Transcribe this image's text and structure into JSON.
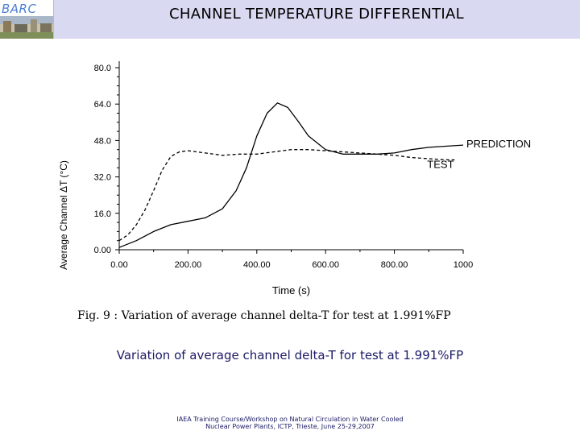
{
  "header": {
    "logo_text": "BARC",
    "title": "CHANNEL TEMPERATURE DIFFERENTIAL"
  },
  "chart_data": {
    "type": "line",
    "xlabel": "Time (s)",
    "ylabel": "Average Channel ΔT (°C)",
    "xlim": [
      0,
      1000
    ],
    "ylim": [
      0,
      80
    ],
    "xticks": [
      "0.00",
      "200.00",
      "400.00",
      "600.00",
      "800.00",
      "1000"
    ],
    "yticks": [
      "0.00",
      "16.0",
      "32.0",
      "48.0",
      "64.0",
      "80.0"
    ],
    "grid": false,
    "series": [
      {
        "name": "PREDICTION",
        "style": "dashed",
        "x": [
          0,
          25,
          50,
          75,
          100,
          125,
          150,
          175,
          200,
          250,
          300,
          350,
          400,
          450,
          500,
          550,
          600,
          650,
          700,
          750,
          800,
          850,
          900,
          950,
          975
        ],
        "y": [
          4,
          6.5,
          11,
          17.5,
          26,
          35,
          41,
          43,
          43.5,
          42.5,
          41.5,
          42,
          42,
          43,
          44,
          44,
          43.5,
          43,
          42.5,
          42,
          41.5,
          40.5,
          40,
          39.5,
          39.5
        ]
      },
      {
        "name": "TEST",
        "style": "solid",
        "x": [
          0,
          50,
          100,
          150,
          200,
          250,
          300,
          340,
          370,
          400,
          430,
          460,
          490,
          520,
          550,
          600,
          650,
          700,
          750,
          800,
          850,
          900,
          950,
          1000
        ],
        "y": [
          1,
          4,
          8,
          11,
          12.5,
          14,
          18,
          26,
          36,
          50,
          60,
          64.5,
          62.5,
          56.5,
          50,
          44,
          42,
          42,
          42,
          42.5,
          44,
          45,
          45.5,
          46
        ]
      }
    ]
  },
  "fig_caption": "Fig. 9 : Variation of average channel delta-T for test at 1.991%FP",
  "slide_caption": "Variation of average channel delta-T for test at 1.991%FP",
  "footer": {
    "line1": "IAEA Training Course/Workshop on Natural Circulation in Water Cooled",
    "line2": "Nuclear Power Plants, ICTP, Trieste, June 25-29,2007"
  }
}
